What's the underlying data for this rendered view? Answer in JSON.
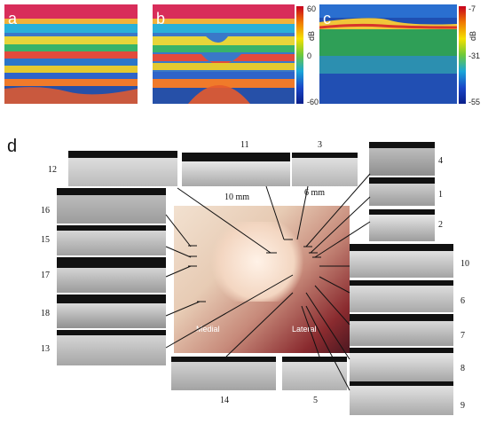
{
  "panels": {
    "a": {
      "letter": "a"
    },
    "b": {
      "letter": "b"
    },
    "c": {
      "letter": "c"
    },
    "d": {
      "letter": "d"
    }
  },
  "colorbar_left": {
    "unit": "dB",
    "ticks": [
      "60",
      "0",
      "-60"
    ]
  },
  "colorbar_right": {
    "unit": "dB",
    "ticks": [
      "-7",
      "-31",
      "-55"
    ]
  },
  "photo": {
    "label_medial": "Medial",
    "label_lateral": "Lateral",
    "scale_left": "10 mm",
    "scale_right": "6 mm"
  },
  "oct_numbers": [
    "12",
    "11",
    "3",
    "4",
    "1",
    "2",
    "16",
    "15",
    "17",
    "18",
    "13",
    "10",
    "6",
    "7",
    "8",
    "9",
    "14",
    "5"
  ]
}
